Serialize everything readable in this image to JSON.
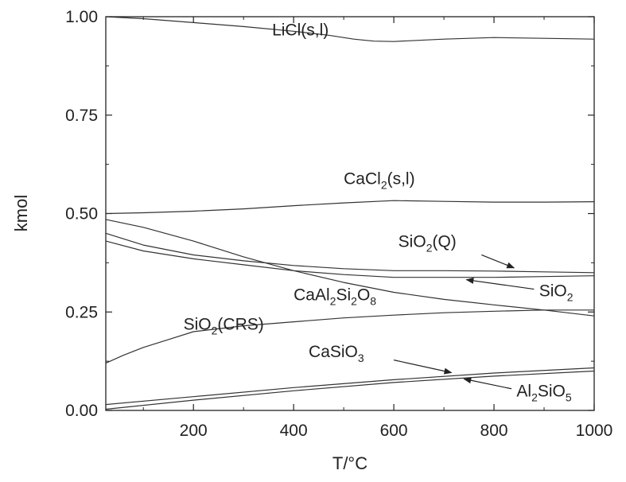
{
  "chart_data": {
    "type": "line",
    "title": "",
    "xlabel": "T/°C",
    "ylabel": "kmol",
    "xlim": [
      25,
      1000
    ],
    "ylim": [
      0,
      1.0
    ],
    "grid": false,
    "x_ticks": [
      200,
      400,
      600,
      800,
      1000
    ],
    "x_tick_labels": [
      "200",
      "400",
      "600",
      "800",
      "1000"
    ],
    "y_ticks": [
      0,
      0.25,
      0.5,
      0.75,
      1.0
    ],
    "y_tick_labels": [
      "0.00",
      "0.25",
      "0.50",
      "0.75",
      "1.00"
    ],
    "series": [
      {
        "name": "LiCl(s,l)",
        "label_parts": [
          [
            "LiCl(s,l)",
            false
          ]
        ],
        "x": [
          25,
          100,
          200,
          300,
          400,
          470,
          520,
          560,
          600,
          650,
          700,
          800,
          900,
          1000
        ],
        "y": [
          1.0,
          0.995,
          0.985,
          0.975,
          0.963,
          0.953,
          0.943,
          0.938,
          0.937,
          0.94,
          0.943,
          0.947,
          0.945,
          0.943
        ]
      },
      {
        "name": "CaCl2(s,l)",
        "label_parts": [
          [
            "CaCl",
            false
          ],
          [
            "2",
            true
          ],
          [
            "(s,l)",
            false
          ]
        ],
        "x": [
          25,
          100,
          200,
          300,
          400,
          500,
          600,
          700,
          800,
          900,
          1000
        ],
        "y": [
          0.5,
          0.502,
          0.506,
          0.512,
          0.52,
          0.527,
          0.533,
          0.531,
          0.529,
          0.529,
          0.53
        ]
      },
      {
        "name": "SiO2(Q)",
        "label_parts": [
          [
            "SiO",
            false
          ],
          [
            "2",
            true
          ],
          [
            "(Q)",
            false
          ]
        ],
        "x": [
          25,
          100,
          200,
          300,
          400,
          500,
          600,
          700,
          800,
          900,
          1000
        ],
        "y": [
          0.45,
          0.42,
          0.395,
          0.38,
          0.368,
          0.36,
          0.355,
          0.355,
          0.354,
          0.352,
          0.35
        ]
      },
      {
        "name": "SiO2",
        "label_parts": [
          [
            "SiO",
            false
          ],
          [
            "2",
            true
          ]
        ],
        "x": [
          25,
          100,
          200,
          300,
          400,
          500,
          600,
          700,
          800,
          900,
          1000
        ],
        "y": [
          0.43,
          0.405,
          0.385,
          0.37,
          0.355,
          0.345,
          0.338,
          0.338,
          0.338,
          0.34,
          0.342
        ]
      },
      {
        "name": "CaAl2Si2O8",
        "label_parts": [
          [
            "CaAl",
            false
          ],
          [
            "2",
            true
          ],
          [
            "Si",
            false
          ],
          [
            "2",
            true
          ],
          [
            "O",
            false
          ],
          [
            "8",
            true
          ]
        ],
        "x": [
          25,
          100,
          200,
          300,
          400,
          500,
          600,
          700,
          800,
          900,
          1000
        ],
        "y": [
          0.485,
          0.465,
          0.43,
          0.39,
          0.355,
          0.325,
          0.3,
          0.282,
          0.268,
          0.255,
          0.24
        ]
      },
      {
        "name": "SiO2(CRS)",
        "label_parts": [
          [
            "SiO",
            false
          ],
          [
            "2",
            true
          ],
          [
            "(CRS)",
            false
          ]
        ],
        "x": [
          25,
          60,
          100,
          150,
          200,
          300,
          400,
          500,
          600,
          700,
          800,
          900,
          1000
        ],
        "y": [
          0.12,
          0.14,
          0.16,
          0.18,
          0.2,
          0.215,
          0.225,
          0.235,
          0.242,
          0.248,
          0.252,
          0.255,
          0.255
        ]
      },
      {
        "name": "CaSiO3",
        "label_parts": [
          [
            "CaSiO",
            false
          ],
          [
            "3",
            true
          ]
        ],
        "x": [
          25,
          200,
          400,
          600,
          800,
          1000
        ],
        "y": [
          0.015,
          0.035,
          0.058,
          0.078,
          0.095,
          0.108
        ]
      },
      {
        "name": "Al2SiO5",
        "label_parts": [
          [
            "Al",
            false
          ],
          [
            "2",
            true
          ],
          [
            "SiO",
            false
          ],
          [
            "5",
            true
          ]
        ],
        "x": [
          25,
          200,
          400,
          600,
          800,
          1000
        ],
        "y": [
          0.003,
          0.026,
          0.05,
          0.071,
          0.087,
          0.1
        ]
      }
    ],
    "annotations": [
      {
        "series": "LiCl(s,l)",
        "label_x": 470,
        "label_y": 0.953,
        "anchor": "end",
        "arrow": false
      },
      {
        "series": "CaCl2(s,l)",
        "label_x": 500,
        "label_y": 0.575,
        "anchor": "start",
        "arrow": false
      },
      {
        "series": "SiO2(Q)",
        "label_x": 725,
        "label_y": 0.415,
        "anchor": "end",
        "arrow": true,
        "arrow_from": [
          775,
          0.395
        ],
        "arrow_to": [
          840,
          0.362
        ]
      },
      {
        "series": "SiO2",
        "label_x": 890,
        "label_y": 0.29,
        "anchor": "start",
        "arrow": true,
        "arrow_from": [
          880,
          0.308
        ],
        "arrow_to": [
          745,
          0.332
        ]
      },
      {
        "series": "CaAl2Si2O8",
        "label_x": 400,
        "label_y": 0.28,
        "anchor": "start",
        "arrow": false
      },
      {
        "series": "SiO2(CRS)",
        "label_x": 180,
        "label_y": 0.205,
        "anchor": "start",
        "arrow": false
      },
      {
        "series": "CaSiO3",
        "label_x": 430,
        "label_y": 0.135,
        "anchor": "start",
        "arrow": true,
        "arrow_from": [
          600,
          0.128
        ],
        "arrow_to": [
          715,
          0.096
        ]
      },
      {
        "series": "Al2SiO5",
        "label_x": 845,
        "label_y": 0.035,
        "anchor": "start",
        "arrow": true,
        "arrow_from": [
          835,
          0.055
        ],
        "arrow_to": [
          740,
          0.08
        ]
      }
    ]
  }
}
